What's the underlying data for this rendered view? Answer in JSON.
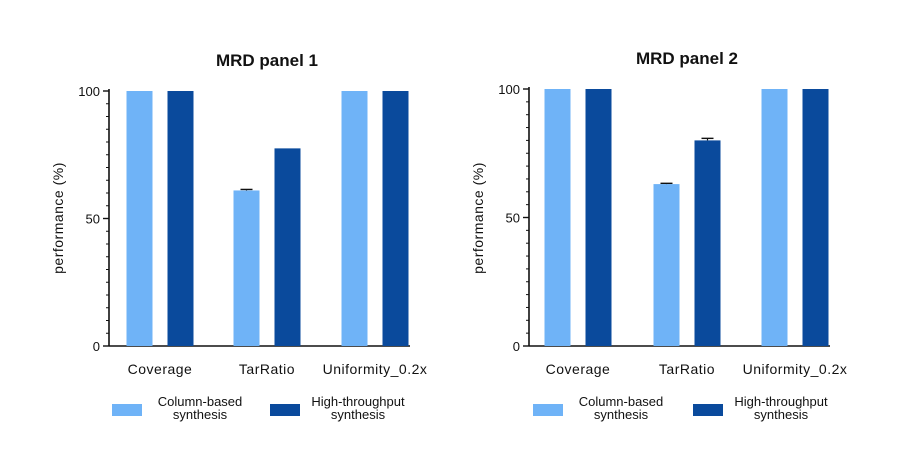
{
  "colors": {
    "series1": "#6fb3f7",
    "series2": "#0a4a9c",
    "axis": "#111111",
    "background": "#ffffff"
  },
  "chart_data": [
    {
      "type": "bar",
      "title": "MRD panel 1",
      "xlabel": "",
      "ylabel": "performance  (%)",
      "ylim": [
        0,
        100
      ],
      "yticks": [
        "0",
        "50",
        "100"
      ],
      "categories": [
        "Coverage",
        "TarRatio",
        "Uniformity_0.2x"
      ],
      "series": [
        {
          "name": "Column-based synthesis",
          "legend_lines": [
            "Column-based",
            "synthesis"
          ],
          "values": [
            100,
            61,
            100
          ],
          "errors": [
            0,
            0.4,
            0
          ]
        },
        {
          "name": "High-throughput synthesis",
          "legend_lines": [
            "High-throughput",
            "synthesis"
          ],
          "values": [
            100,
            77.5,
            100
          ],
          "errors": [
            0,
            0,
            0
          ]
        }
      ]
    },
    {
      "type": "bar",
      "title": "MRD panel 2",
      "xlabel": "",
      "ylabel": "performance  (%)",
      "ylim": [
        0,
        100
      ],
      "yticks": [
        "0",
        "50",
        "100"
      ],
      "categories": [
        "Coverage",
        "TarRatio",
        "Uniformity_0.2x"
      ],
      "series": [
        {
          "name": "Column-based synthesis",
          "legend_lines": [
            "Column-based",
            "synthesis"
          ],
          "values": [
            100,
            63,
            100
          ],
          "errors": [
            0,
            0.3,
            0
          ]
        },
        {
          "name": "High-throughput synthesis",
          "legend_lines": [
            "High-throughput",
            "synthesis"
          ],
          "values": [
            100,
            80,
            100
          ],
          "errors": [
            0,
            0.8,
            0
          ]
        }
      ]
    }
  ]
}
